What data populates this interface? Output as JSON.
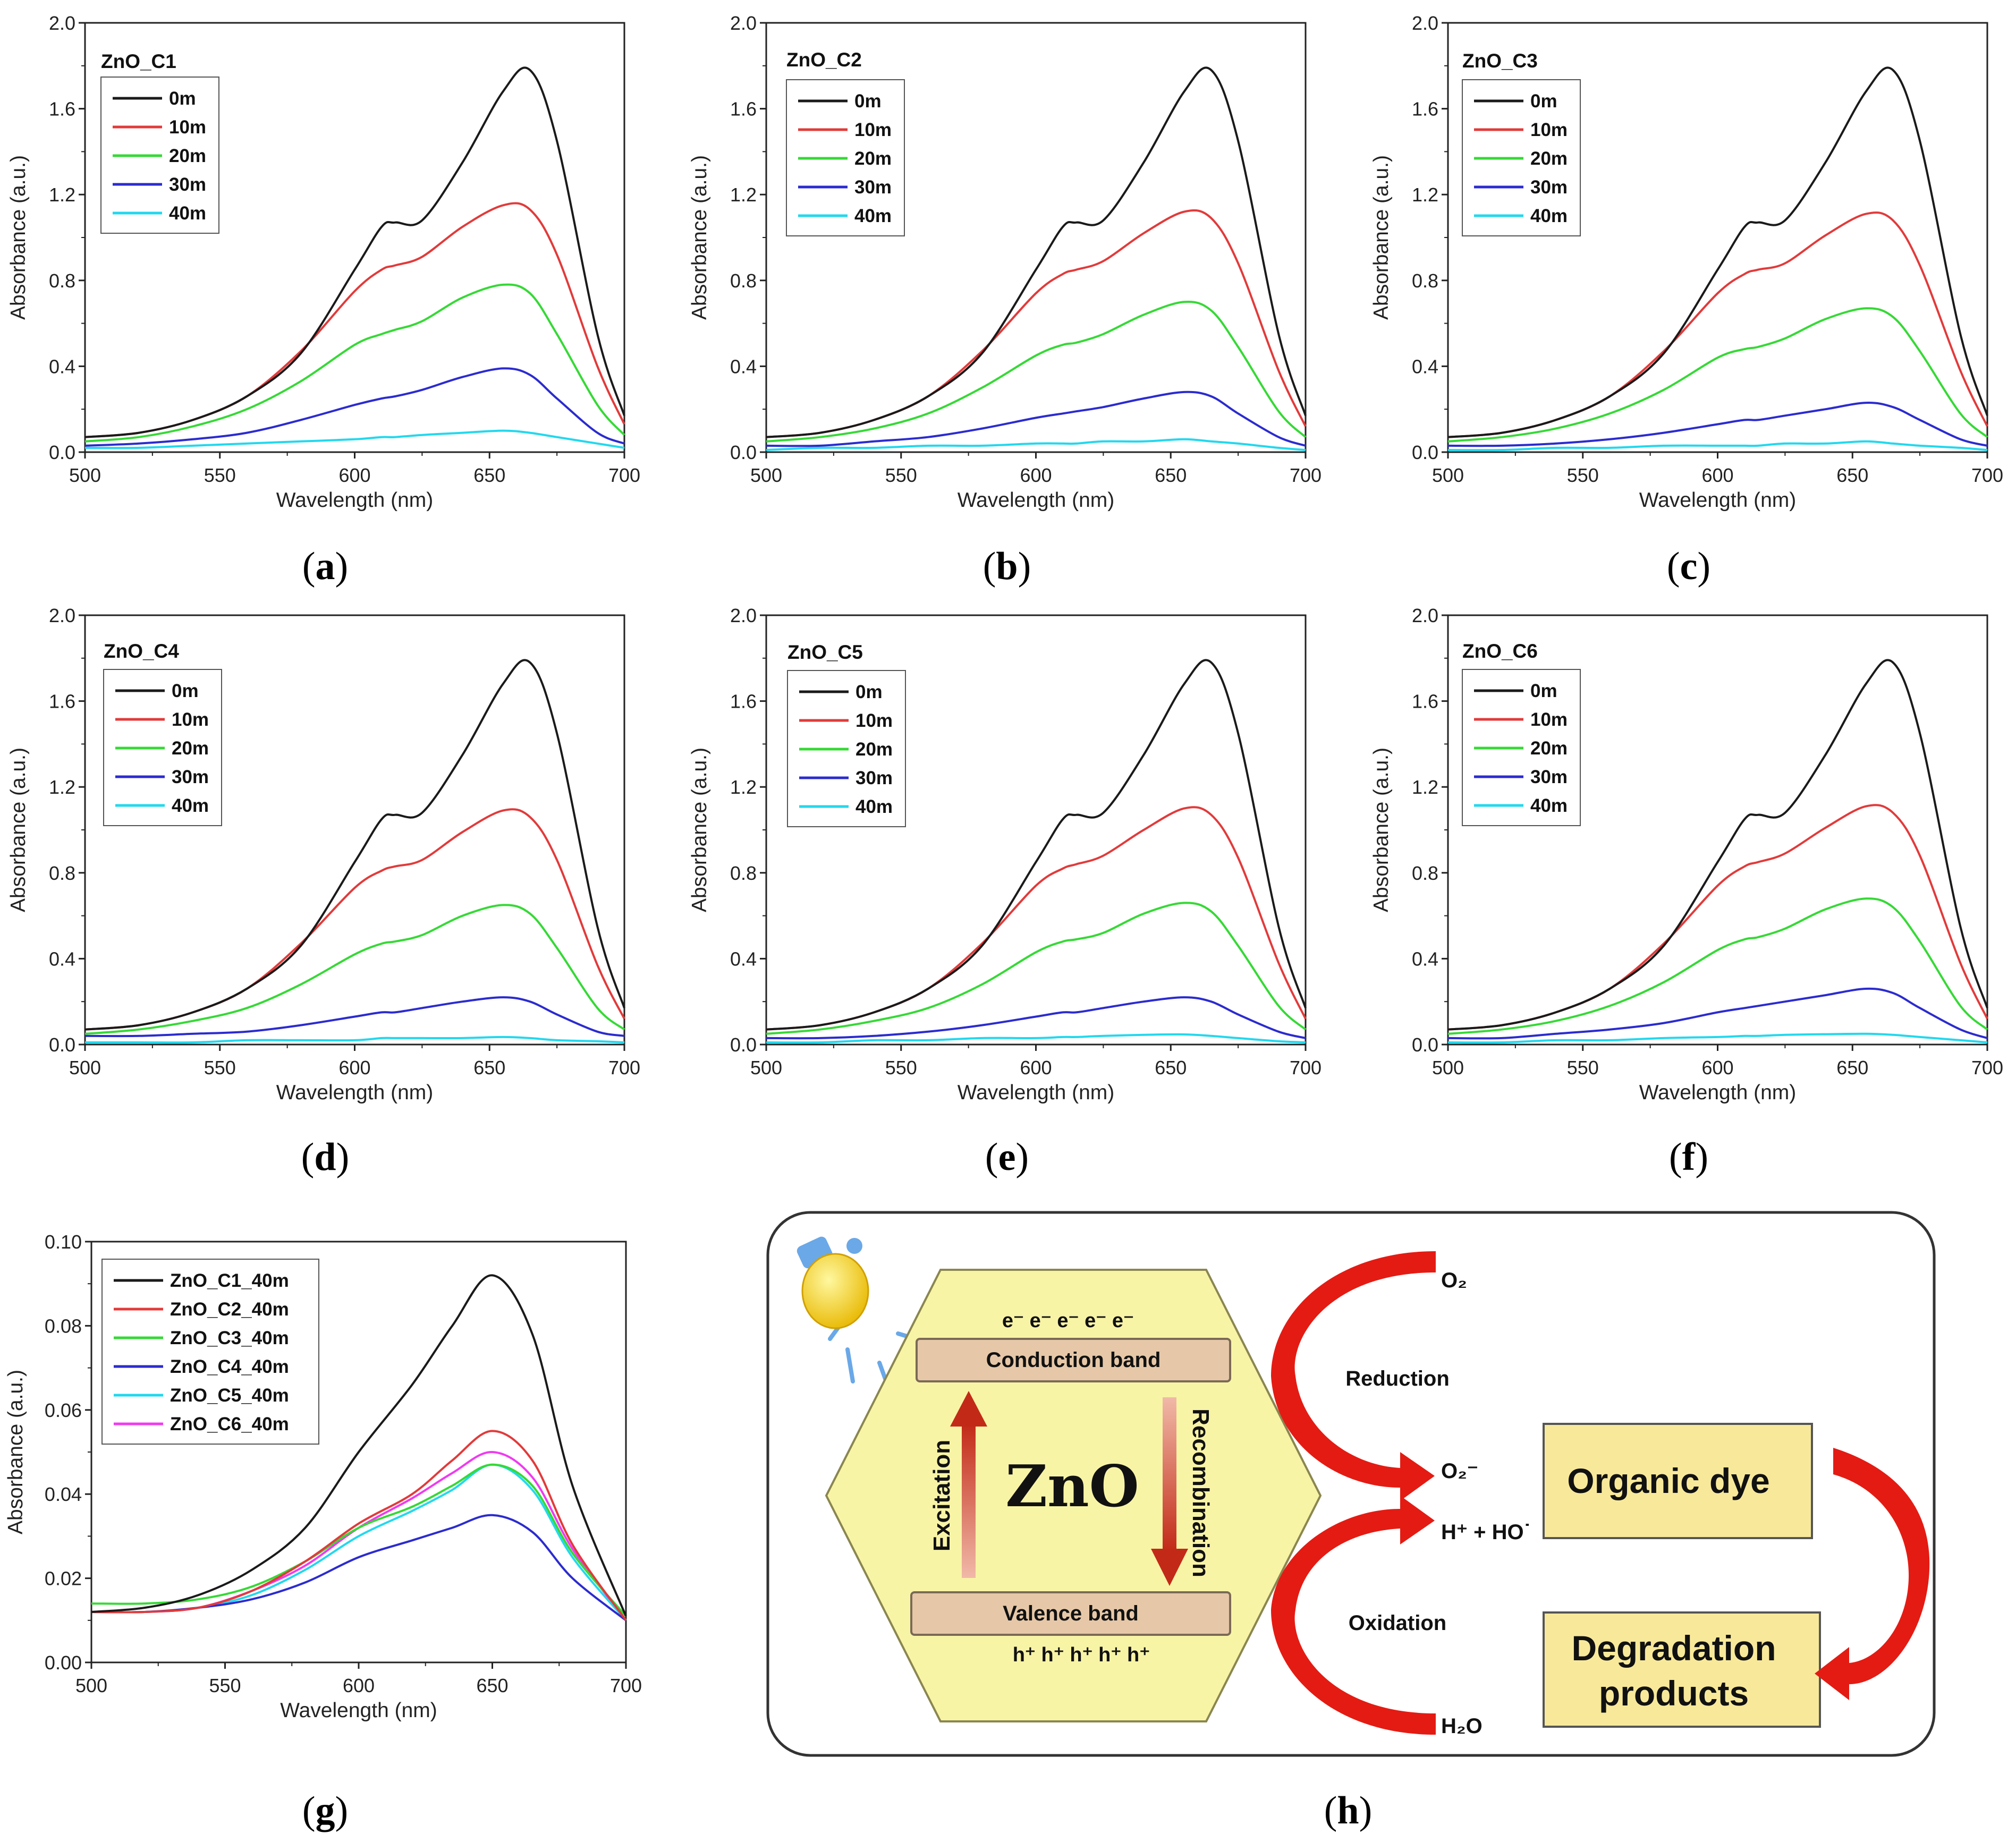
{
  "figure": {
    "panel_labels": [
      "a",
      "b",
      "c",
      "d",
      "e",
      "f",
      "g",
      "h"
    ],
    "series_colors": [
      "#1a1a1a",
      "#e23a3a",
      "#35d935",
      "#2b2bd0",
      "#22d8ee",
      "#f03af0"
    ]
  },
  "chart_data": [
    {
      "type": "line",
      "panel": "a",
      "sample": "ZnO_C1",
      "xlabel": "Wavelength (nm)",
      "ylabel": "Absorbance (a.u.)",
      "xlim": [
        500,
        700
      ],
      "ylim": [
        0,
        2.0
      ],
      "xticks": [
        "500",
        "550",
        "600",
        "650",
        "700"
      ],
      "yticks": [
        "0.0",
        "0.4",
        "0.8",
        "1.2",
        "1.6",
        "2.0"
      ],
      "ytick_values": [
        0,
        0.4,
        0.8,
        1.2,
        1.6,
        2.0
      ],
      "x": [
        500,
        520,
        540,
        560,
        580,
        600,
        610,
        615,
        625,
        640,
        655,
        665,
        675,
        690,
        700
      ],
      "series": [
        {
          "name": "0m",
          "values": [
            0.07,
            0.09,
            0.15,
            0.26,
            0.46,
            0.85,
            1.05,
            1.07,
            1.08,
            1.35,
            1.68,
            1.78,
            1.45,
            0.55,
            0.17
          ]
        },
        {
          "name": "10m",
          "values": [
            0.07,
            0.09,
            0.15,
            0.26,
            0.47,
            0.75,
            0.85,
            0.87,
            0.91,
            1.05,
            1.15,
            1.13,
            0.92,
            0.4,
            0.13
          ]
        },
        {
          "name": "20m",
          "values": [
            0.05,
            0.07,
            0.12,
            0.2,
            0.33,
            0.5,
            0.55,
            0.57,
            0.61,
            0.72,
            0.78,
            0.74,
            0.55,
            0.22,
            0.08
          ]
        },
        {
          "name": "30m",
          "values": [
            0.03,
            0.04,
            0.06,
            0.09,
            0.15,
            0.22,
            0.25,
            0.26,
            0.29,
            0.35,
            0.39,
            0.36,
            0.25,
            0.09,
            0.04
          ]
        },
        {
          "name": "40m",
          "values": [
            0.02,
            0.02,
            0.03,
            0.04,
            0.05,
            0.06,
            0.07,
            0.07,
            0.08,
            0.09,
            0.1,
            0.09,
            0.07,
            0.04,
            0.02
          ]
        }
      ]
    },
    {
      "type": "line",
      "panel": "b",
      "sample": "ZnO_C2",
      "xlabel": "Wavelength (nm)",
      "ylabel": "Absorbance (a.u.)",
      "xlim": [
        500,
        700
      ],
      "ylim": [
        0,
        2.0
      ],
      "xticks": [
        "500",
        "550",
        "600",
        "650",
        "700"
      ],
      "yticks": [
        "0.0",
        "0.4",
        "0.8",
        "1.2",
        "1.6",
        "2.0"
      ],
      "ytick_values": [
        0,
        0.4,
        0.8,
        1.2,
        1.6,
        2.0
      ],
      "x": [
        500,
        520,
        540,
        560,
        580,
        600,
        610,
        615,
        625,
        640,
        655,
        665,
        675,
        690,
        700
      ],
      "series": [
        {
          "name": "0m",
          "values": [
            0.07,
            0.09,
            0.15,
            0.26,
            0.46,
            0.85,
            1.05,
            1.07,
            1.08,
            1.35,
            1.68,
            1.78,
            1.45,
            0.55,
            0.17
          ]
        },
        {
          "name": "10m",
          "values": [
            0.07,
            0.09,
            0.15,
            0.26,
            0.47,
            0.74,
            0.83,
            0.85,
            0.89,
            1.02,
            1.12,
            1.09,
            0.88,
            0.38,
            0.12
          ]
        },
        {
          "name": "20m",
          "values": [
            0.05,
            0.07,
            0.11,
            0.18,
            0.3,
            0.45,
            0.5,
            0.51,
            0.55,
            0.64,
            0.7,
            0.66,
            0.49,
            0.19,
            0.07
          ]
        },
        {
          "name": "30m",
          "values": [
            0.03,
            0.03,
            0.05,
            0.07,
            0.11,
            0.16,
            0.18,
            0.19,
            0.21,
            0.25,
            0.28,
            0.26,
            0.18,
            0.07,
            0.03
          ]
        },
        {
          "name": "40m",
          "values": [
            0.01,
            0.02,
            0.02,
            0.03,
            0.03,
            0.04,
            0.04,
            0.04,
            0.05,
            0.05,
            0.06,
            0.05,
            0.04,
            0.02,
            0.01
          ]
        }
      ]
    },
    {
      "type": "line",
      "panel": "c",
      "sample": "ZnO_C3",
      "xlabel": "Wavelength (nm)",
      "ylabel": "Absorbance (a.u.)",
      "xlim": [
        500,
        700
      ],
      "ylim": [
        0,
        2.0
      ],
      "xticks": [
        "500",
        "550",
        "600",
        "650",
        "700"
      ],
      "yticks": [
        "0.0",
        "0.4",
        "0.8",
        "1.2",
        "1.6",
        "2.0"
      ],
      "ytick_values": [
        0,
        0.4,
        0.8,
        1.2,
        1.6,
        2.0
      ],
      "x": [
        500,
        520,
        540,
        560,
        580,
        600,
        610,
        615,
        625,
        640,
        655,
        665,
        675,
        690,
        700
      ],
      "series": [
        {
          "name": "0m",
          "values": [
            0.07,
            0.09,
            0.15,
            0.26,
            0.46,
            0.85,
            1.05,
            1.07,
            1.08,
            1.35,
            1.68,
            1.78,
            1.45,
            0.55,
            0.17
          ]
        },
        {
          "name": "10m",
          "values": [
            0.07,
            0.09,
            0.15,
            0.26,
            0.47,
            0.74,
            0.83,
            0.85,
            0.88,
            1.01,
            1.11,
            1.08,
            0.87,
            0.38,
            0.12
          ]
        },
        {
          "name": "20m",
          "values": [
            0.05,
            0.07,
            0.11,
            0.18,
            0.29,
            0.44,
            0.48,
            0.49,
            0.53,
            0.62,
            0.67,
            0.63,
            0.47,
            0.18,
            0.07
          ]
        },
        {
          "name": "30m",
          "values": [
            0.03,
            0.03,
            0.04,
            0.06,
            0.09,
            0.13,
            0.15,
            0.15,
            0.17,
            0.2,
            0.23,
            0.21,
            0.15,
            0.06,
            0.03
          ]
        },
        {
          "name": "40m",
          "values": [
            0.01,
            0.01,
            0.02,
            0.02,
            0.03,
            0.03,
            0.03,
            0.03,
            0.04,
            0.04,
            0.05,
            0.04,
            0.03,
            0.02,
            0.01
          ]
        }
      ]
    },
    {
      "type": "line",
      "panel": "d",
      "sample": "ZnO_C4",
      "xlabel": "Wavelength (nm)",
      "ylabel": "Absorbance (a.u.)",
      "xlim": [
        500,
        700
      ],
      "ylim": [
        0,
        2.0
      ],
      "xticks": [
        "500",
        "550",
        "600",
        "650",
        "700"
      ],
      "yticks": [
        "0.0",
        "0.4",
        "0.8",
        "1.2",
        "1.6",
        "2.0"
      ],
      "ytick_values": [
        0,
        0.4,
        0.8,
        1.2,
        1.6,
        2.0
      ],
      "x": [
        500,
        520,
        540,
        560,
        580,
        600,
        610,
        615,
        625,
        640,
        655,
        665,
        675,
        690,
        700
      ],
      "series": [
        {
          "name": "0m",
          "values": [
            0.07,
            0.09,
            0.15,
            0.26,
            0.46,
            0.85,
            1.05,
            1.07,
            1.08,
            1.35,
            1.68,
            1.78,
            1.45,
            0.55,
            0.17
          ]
        },
        {
          "name": "10m",
          "values": [
            0.07,
            0.09,
            0.15,
            0.26,
            0.47,
            0.73,
            0.81,
            0.83,
            0.86,
            0.99,
            1.09,
            1.06,
            0.86,
            0.37,
            0.12
          ]
        },
        {
          "name": "20m",
          "values": [
            0.05,
            0.07,
            0.11,
            0.17,
            0.28,
            0.42,
            0.47,
            0.48,
            0.51,
            0.6,
            0.65,
            0.61,
            0.45,
            0.17,
            0.07
          ]
        },
        {
          "name": "30m",
          "values": [
            0.04,
            0.04,
            0.05,
            0.06,
            0.09,
            0.13,
            0.15,
            0.15,
            0.17,
            0.2,
            0.22,
            0.2,
            0.14,
            0.06,
            0.04
          ]
        },
        {
          "name": "40m",
          "values": [
            0.01,
            0.01,
            0.01,
            0.02,
            0.02,
            0.02,
            0.03,
            0.03,
            0.03,
            0.03,
            0.035,
            0.03,
            0.02,
            0.015,
            0.01
          ]
        }
      ]
    },
    {
      "type": "line",
      "panel": "e",
      "sample": "ZnO_C5",
      "xlabel": "Wavelength (nm)",
      "ylabel": "Absorbance (a.u.)",
      "xlim": [
        500,
        700
      ],
      "ylim": [
        0,
        2.0
      ],
      "xticks": [
        "500",
        "550",
        "600",
        "650",
        "700"
      ],
      "yticks": [
        "0.0",
        "0.4",
        "0.8",
        "1.2",
        "1.6",
        "2.0"
      ],
      "ytick_values": [
        0,
        0.4,
        0.8,
        1.2,
        1.6,
        2.0
      ],
      "x": [
        500,
        520,
        540,
        560,
        580,
        600,
        610,
        615,
        625,
        640,
        655,
        665,
        675,
        690,
        700
      ],
      "series": [
        {
          "name": "0m",
          "values": [
            0.07,
            0.09,
            0.15,
            0.26,
            0.46,
            0.85,
            1.05,
            1.07,
            1.08,
            1.35,
            1.68,
            1.78,
            1.45,
            0.55,
            0.17
          ]
        },
        {
          "name": "10m",
          "values": [
            0.07,
            0.09,
            0.15,
            0.26,
            0.47,
            0.74,
            0.82,
            0.84,
            0.88,
            1.0,
            1.1,
            1.07,
            0.87,
            0.38,
            0.12
          ]
        },
        {
          "name": "20m",
          "values": [
            0.05,
            0.07,
            0.11,
            0.17,
            0.28,
            0.43,
            0.48,
            0.49,
            0.52,
            0.61,
            0.66,
            0.62,
            0.46,
            0.18,
            0.07
          ]
        },
        {
          "name": "30m",
          "values": [
            0.03,
            0.03,
            0.04,
            0.06,
            0.09,
            0.13,
            0.15,
            0.15,
            0.17,
            0.2,
            0.22,
            0.2,
            0.14,
            0.06,
            0.03
          ]
        },
        {
          "name": "40m",
          "values": [
            0.01,
            0.01,
            0.02,
            0.02,
            0.03,
            0.03,
            0.035,
            0.035,
            0.04,
            0.045,
            0.047,
            0.04,
            0.03,
            0.015,
            0.01
          ]
        }
      ]
    },
    {
      "type": "line",
      "panel": "f",
      "sample": "ZnO_C6",
      "xlabel": "Wavelength (nm)",
      "ylabel": "Absorbance (a.u.)",
      "xlim": [
        500,
        700
      ],
      "ylim": [
        0,
        2.0
      ],
      "xticks": [
        "500",
        "550",
        "600",
        "650",
        "700"
      ],
      "yticks": [
        "0.0",
        "0.4",
        "0.8",
        "1.2",
        "1.6",
        "2.0"
      ],
      "ytick_values": [
        0,
        0.4,
        0.8,
        1.2,
        1.6,
        2.0
      ],
      "x": [
        500,
        520,
        540,
        560,
        580,
        600,
        610,
        615,
        625,
        640,
        655,
        665,
        675,
        690,
        700
      ],
      "series": [
        {
          "name": "0m",
          "values": [
            0.07,
            0.09,
            0.15,
            0.26,
            0.46,
            0.85,
            1.05,
            1.07,
            1.08,
            1.35,
            1.68,
            1.78,
            1.45,
            0.55,
            0.17
          ]
        },
        {
          "name": "10m",
          "values": [
            0.07,
            0.09,
            0.15,
            0.26,
            0.47,
            0.74,
            0.83,
            0.85,
            0.89,
            1.01,
            1.11,
            1.08,
            0.88,
            0.38,
            0.12
          ]
        },
        {
          "name": "20m",
          "values": [
            0.05,
            0.07,
            0.11,
            0.18,
            0.29,
            0.44,
            0.49,
            0.5,
            0.54,
            0.63,
            0.68,
            0.64,
            0.48,
            0.18,
            0.07
          ]
        },
        {
          "name": "30m",
          "values": [
            0.03,
            0.03,
            0.05,
            0.07,
            0.1,
            0.15,
            0.17,
            0.18,
            0.2,
            0.23,
            0.26,
            0.24,
            0.17,
            0.07,
            0.03
          ]
        },
        {
          "name": "40m",
          "values": [
            0.01,
            0.01,
            0.02,
            0.02,
            0.03,
            0.035,
            0.04,
            0.04,
            0.045,
            0.048,
            0.05,
            0.045,
            0.035,
            0.02,
            0.01
          ]
        }
      ]
    },
    {
      "type": "line",
      "panel": "g",
      "sample": "",
      "xlabel": "Wavelength (nm)",
      "ylabel": "Absorbance (a.u.)",
      "xlim": [
        500,
        700
      ],
      "ylim": [
        0,
        0.1
      ],
      "xticks": [
        "500",
        "550",
        "600",
        "650",
        "700"
      ],
      "yticks": [
        "0.00",
        "0.02",
        "0.04",
        "0.06",
        "0.08",
        "0.10"
      ],
      "ytick_values": [
        0,
        0.02,
        0.04,
        0.06,
        0.08,
        0.1
      ],
      "x": [
        500,
        520,
        540,
        560,
        580,
        600,
        620,
        635,
        650,
        665,
        680,
        700
      ],
      "series": [
        {
          "name": "ZnO_C1_40m",
          "values": [
            0.012,
            0.013,
            0.016,
            0.022,
            0.032,
            0.05,
            0.066,
            0.08,
            0.092,
            0.078,
            0.042,
            0.011
          ]
        },
        {
          "name": "ZnO_C2_40m",
          "values": [
            0.012,
            0.012,
            0.013,
            0.017,
            0.024,
            0.033,
            0.04,
            0.048,
            0.055,
            0.048,
            0.028,
            0.01
          ]
        },
        {
          "name": "ZnO_C3_40m",
          "values": [
            0.014,
            0.014,
            0.015,
            0.018,
            0.024,
            0.032,
            0.037,
            0.042,
            0.047,
            0.042,
            0.026,
            0.011
          ]
        },
        {
          "name": "ZnO_C4_40m",
          "values": [
            0.012,
            0.012,
            0.013,
            0.015,
            0.019,
            0.025,
            0.029,
            0.032,
            0.035,
            0.031,
            0.02,
            0.01
          ]
        },
        {
          "name": "ZnO_C5_40m",
          "values": [
            0.012,
            0.012,
            0.013,
            0.016,
            0.022,
            0.03,
            0.036,
            0.041,
            0.047,
            0.041,
            0.025,
            0.01
          ]
        },
        {
          "name": "ZnO_C6_40m",
          "values": [
            0.012,
            0.012,
            0.013,
            0.017,
            0.023,
            0.032,
            0.039,
            0.045,
            0.05,
            0.044,
            0.027,
            0.01
          ]
        }
      ]
    }
  ],
  "diagram": {
    "material": "ZnO",
    "conduction_band": "Conduction band",
    "valence_band": "Valence band",
    "electrons": "e⁻ e⁻ e⁻ e⁻ e⁻",
    "holes": "h⁺ h⁺ h⁺ h⁺ h⁺",
    "excitation": "Excitation",
    "recombination": "Recombination",
    "o2": "O₂",
    "reduction": "Reduction",
    "o2_radical": "O₂⁻",
    "h_ho": "H⁺ + HO˙",
    "oxidation": "Oxidation",
    "h2o": "H₂O",
    "organic_dye": "Organic dye",
    "degradation_line1": "Degradation",
    "degradation_line2": "products"
  }
}
